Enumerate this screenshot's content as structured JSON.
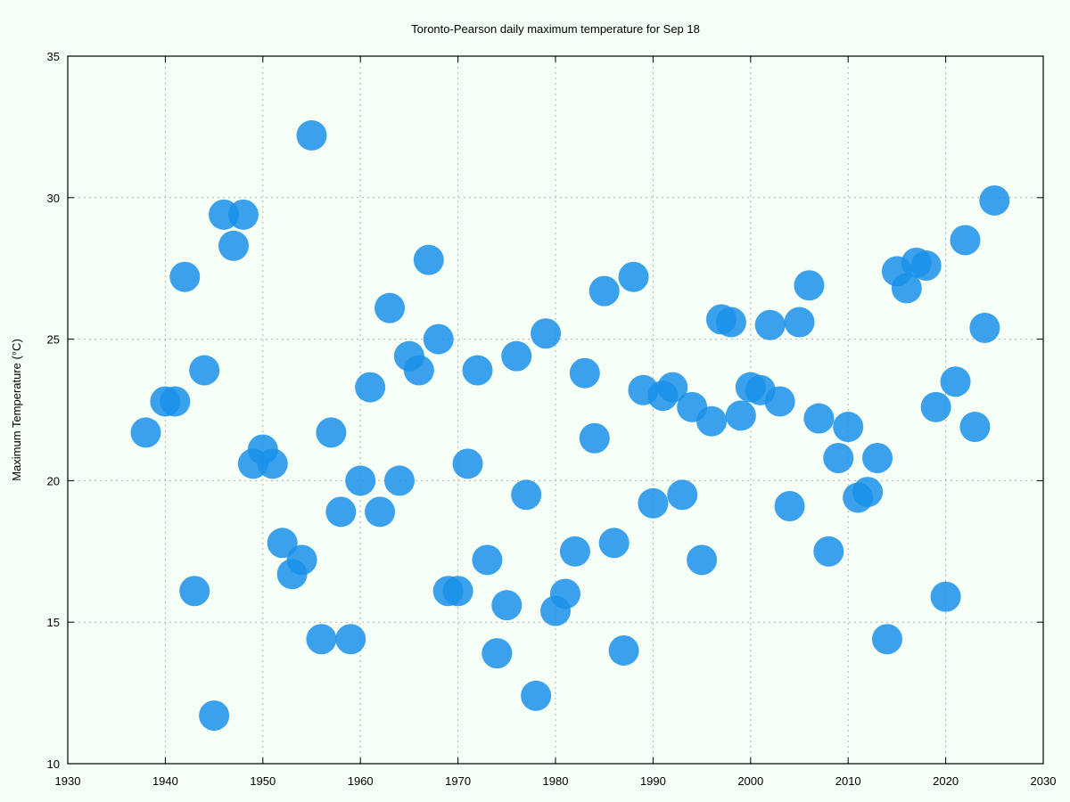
{
  "chart_data": {
    "type": "scatter",
    "title": "Toronto-Pearson daily maximum temperature for Sep 18",
    "xlabel": "",
    "ylabel": "Maximum Temperature (°C)",
    "xlim": [
      1930,
      2030
    ],
    "ylim": [
      10,
      35
    ],
    "xticks": [
      "1930",
      "1940",
      "1950",
      "1960",
      "1970",
      "1980",
      "1990",
      "2000",
      "2010",
      "2020",
      "2030"
    ],
    "yticks": [
      "10",
      "15",
      "20",
      "25",
      "30",
      "35"
    ],
    "grid": true,
    "point_color": "#1a90ea",
    "points": [
      [
        1938,
        21.7
      ],
      [
        1940,
        22.8
      ],
      [
        1941,
        22.8
      ],
      [
        1942,
        27.2
      ],
      [
        1943,
        16.1
      ],
      [
        1944,
        23.9
      ],
      [
        1945,
        11.7
      ],
      [
        1946,
        29.4
      ],
      [
        1947,
        28.3
      ],
      [
        1948,
        29.4
      ],
      [
        1949,
        20.6
      ],
      [
        1950,
        21.1
      ],
      [
        1951,
        20.6
      ],
      [
        1952,
        17.8
      ],
      [
        1953,
        16.7
      ],
      [
        1954,
        17.2
      ],
      [
        1955,
        32.2
      ],
      [
        1956,
        14.4
      ],
      [
        1957,
        21.7
      ],
      [
        1958,
        18.9
      ],
      [
        1959,
        14.4
      ],
      [
        1960,
        20.0
      ],
      [
        1961,
        23.3
      ],
      [
        1962,
        18.9
      ],
      [
        1963,
        26.1
      ],
      [
        1964,
        20.0
      ],
      [
        1965,
        24.4
      ],
      [
        1966,
        23.9
      ],
      [
        1967,
        27.8
      ],
      [
        1968,
        25.0
      ],
      [
        1969,
        16.1
      ],
      [
        1970,
        16.1
      ],
      [
        1971,
        20.6
      ],
      [
        1972,
        23.9
      ],
      [
        1973,
        17.2
      ],
      [
        1974,
        13.9
      ],
      [
        1975,
        15.6
      ],
      [
        1976,
        24.4
      ],
      [
        1977,
        19.5
      ],
      [
        1978,
        12.4
      ],
      [
        1979,
        25.2
      ],
      [
        1980,
        15.4
      ],
      [
        1981,
        16.0
      ],
      [
        1982,
        17.5
      ],
      [
        1983,
        23.8
      ],
      [
        1984,
        21.5
      ],
      [
        1985,
        26.7
      ],
      [
        1986,
        17.8
      ],
      [
        1987,
        14.0
      ],
      [
        1988,
        27.2
      ],
      [
        1989,
        23.2
      ],
      [
        1990,
        19.2
      ],
      [
        1991,
        23.0
      ],
      [
        1992,
        23.3
      ],
      [
        1993,
        19.5
      ],
      [
        1994,
        22.6
      ],
      [
        1995,
        17.2
      ],
      [
        1996,
        22.1
      ],
      [
        1997,
        25.7
      ],
      [
        1998,
        25.6
      ],
      [
        1999,
        22.3
      ],
      [
        2000,
        23.3
      ],
      [
        2001,
        23.2
      ],
      [
        2002,
        25.5
      ],
      [
        2003,
        22.8
      ],
      [
        2004,
        19.1
      ],
      [
        2005,
        25.6
      ],
      [
        2006,
        26.9
      ],
      [
        2007,
        22.2
      ],
      [
        2008,
        17.5
      ],
      [
        2009,
        20.8
      ],
      [
        2010,
        21.9
      ],
      [
        2011,
        19.4
      ],
      [
        2012,
        19.6
      ],
      [
        2013,
        20.8
      ],
      [
        2014,
        14.4
      ],
      [
        2015,
        27.4
      ],
      [
        2016,
        26.8
      ],
      [
        2017,
        27.7
      ],
      [
        2018,
        27.6
      ],
      [
        2019,
        22.6
      ],
      [
        2020,
        15.9
      ],
      [
        2021,
        23.5
      ],
      [
        2022,
        28.5
      ],
      [
        2023,
        21.9
      ],
      [
        2024,
        25.4
      ],
      [
        2025,
        29.9
      ]
    ]
  }
}
